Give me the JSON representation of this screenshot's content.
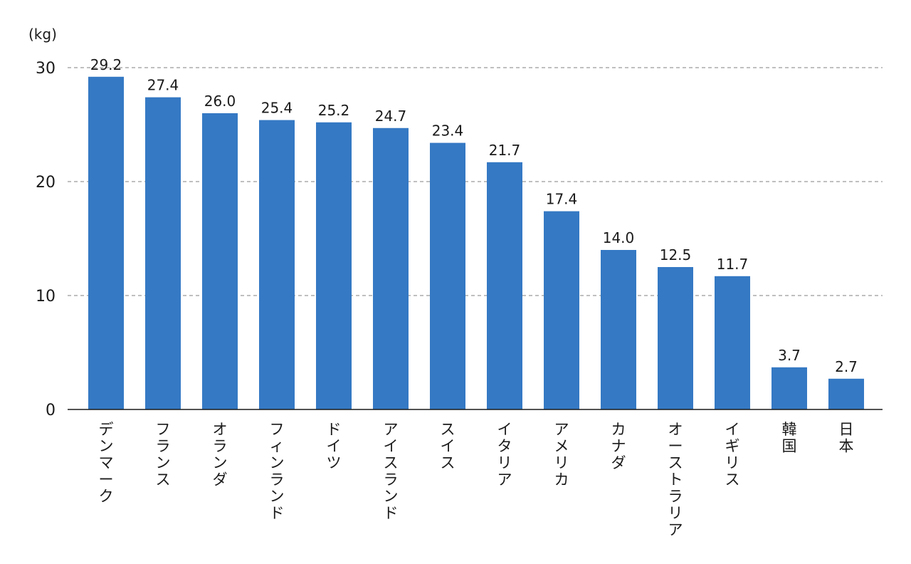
{
  "chart_data": {
    "type": "bar",
    "unit_label": "(kg)",
    "categories": [
      "デンマーク",
      "フランス",
      "オランダ",
      "フィンランド",
      "ドイツ",
      "アイスランド",
      "スイス",
      "イタリア",
      "アメリカ",
      "カナダ",
      "オーストラリア",
      "イギリス",
      "韓国",
      "日本"
    ],
    "values": [
      29.2,
      27.4,
      26.0,
      25.4,
      25.2,
      24.7,
      23.4,
      21.7,
      17.4,
      14.0,
      12.5,
      11.7,
      3.7,
      2.7
    ],
    "value_labels": [
      "29.2",
      "27.4",
      "26.0",
      "25.4",
      "25.2",
      "24.7",
      "23.4",
      "21.7",
      "17.4",
      "14.0",
      "12.5",
      "11.7",
      "3.7",
      "2.7"
    ],
    "yticks": [
      "0",
      "10",
      "20",
      "30"
    ],
    "ylim": [
      0,
      30
    ],
    "grid": true,
    "bar_color": "#3579c4",
    "category_label_orientation": "vertical"
  }
}
